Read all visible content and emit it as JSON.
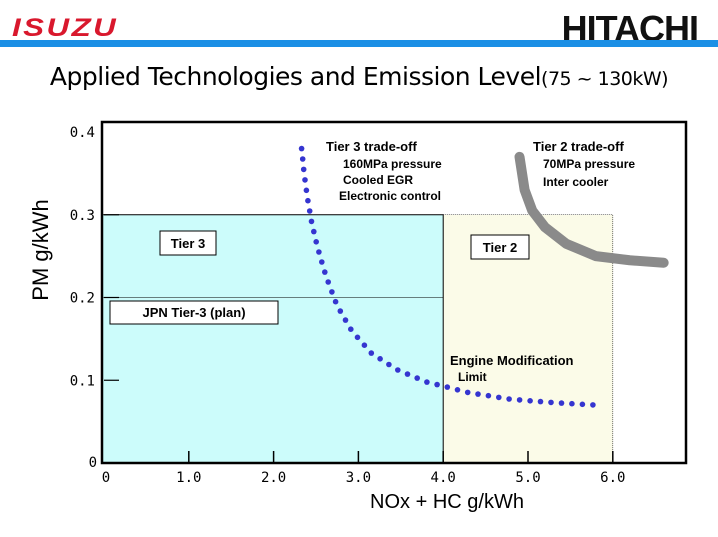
{
  "header": {
    "logo_left": "ISUZU",
    "logo_right": "HITACHI",
    "title_main": "Applied Technologies and Emission Level",
    "title_sub": "(75 ~ 130kW)"
  },
  "colors": {
    "header_rule": "#1b8fe5",
    "tier3_fill": "#ccfcfb",
    "tier2_fill": "#fbfbe8",
    "tier3_tradeoff": "#3535d0",
    "tier2_tradeoff": "#8a8a8a",
    "logo_isuzu": "#d9182d"
  },
  "chart_data": {
    "type": "scatter",
    "xlabel": "NOx + HC   g/kWh",
    "ylabel": "PM   g/kWh",
    "xlim": [
      0,
      6.8
    ],
    "ylim": [
      0,
      0.4
    ],
    "x_ticks": [
      "0",
      "1.0",
      "2.0",
      "3.0",
      "4.0",
      "5.0",
      "6.0"
    ],
    "y_ticks": [
      "0",
      "0.1",
      "0.2",
      "0.3",
      "0.4"
    ],
    "regions": [
      {
        "name": "Tier 3",
        "x": [
          0,
          4.0
        ],
        "y": [
          0,
          0.3
        ]
      },
      {
        "name": "Tier 2",
        "x": [
          4.0,
          6.0
        ],
        "y": [
          0,
          0.3
        ]
      }
    ],
    "region_labels": {
      "tier3": "Tier 3",
      "tier2": "Tier 2",
      "jpn": "JPN Tier-3 (plan)"
    },
    "jpn_plan_line_y": 0.2,
    "series": [
      {
        "name": "Tier 3 trade-off",
        "style": "dotted",
        "x": [
          2.33,
          2.36,
          2.4,
          2.45,
          2.52,
          2.62,
          2.75,
          2.92,
          3.15,
          3.45,
          3.8,
          4.0,
          4.3,
          4.8,
          5.3,
          5.8
        ],
        "y": [
          0.38,
          0.35,
          0.32,
          0.29,
          0.26,
          0.225,
          0.19,
          0.16,
          0.133,
          0.113,
          0.098,
          0.093,
          0.085,
          0.077,
          0.073,
          0.07
        ]
      },
      {
        "name": "Tier 2  trade-off",
        "style": "solid",
        "x": [
          4.9,
          4.96,
          5.05,
          5.2,
          5.45,
          5.8,
          6.2,
          6.6
        ],
        "y": [
          0.37,
          0.33,
          0.305,
          0.285,
          0.265,
          0.25,
          0.245,
          0.242
        ]
      }
    ],
    "annotations": {
      "tier3_tradeoff_title": "Tier 3 trade-off",
      "tier3_notes": [
        "160MPa pressure",
        "Cooled EGR",
        "Electronic control"
      ],
      "tier2_tradeoff_title": "Tier 2  trade-off",
      "tier2_notes": [
        "70MPa pressure",
        "Inter cooler"
      ],
      "engine_mod_title": "Engine Modification",
      "engine_mod_sub": "Limit"
    },
    "grid": false
  }
}
